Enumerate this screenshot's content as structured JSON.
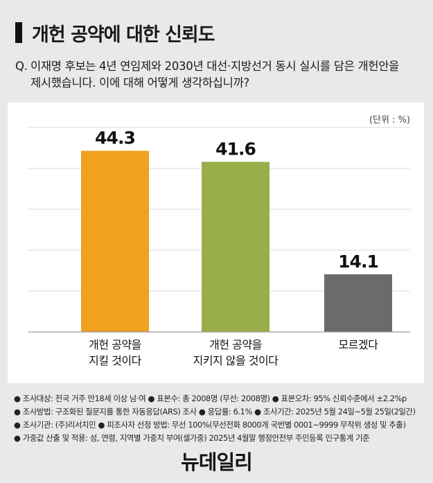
{
  "header": {
    "title": "개헌 공약에 대한 신뢰도",
    "question_prefix": "Q.",
    "question_line1": "이재명 후보는 4년 연임제와 2030년 대선·지방선거 동시 실시를 담은 개헌안을",
    "question_line2": "제시했습니다. 이에 대해 어떻게 생각하십니까?"
  },
  "unit_label": "(단위 : %)",
  "chart_data": {
    "type": "bar",
    "categories": [
      [
        "개헌 공약을",
        "지킬 것이다"
      ],
      [
        "개헌 공약을",
        "지키지 않을 것이다"
      ],
      [
        "모르겠다"
      ]
    ],
    "values": [
      44.3,
      41.6,
      14.1
    ],
    "value_labels": [
      "44.3",
      "41.6",
      "14.1"
    ],
    "colors": [
      "#f0a11e",
      "#99ad4a",
      "#6b6b6b"
    ],
    "ylim": [
      0,
      50
    ],
    "grid": true,
    "title": "",
    "xlabel": "",
    "ylabel": ""
  },
  "footer": {
    "notes": [
      "● 조사대상: 전국 거주 만18세 이상 남·여  ● 표본수: 총 2008명 (무선: 2008명)  ● 표본오차: 95% 신뢰수준에서 ±2.2%p",
      "● 조사방법: 구조화된 질문지를 통한 자동응답(ARS) 조사  ● 응답률: 6.1%  ● 조사기간: 2025년 5월 24일~5월 25일(2일간)",
      "● 조사기관: (주)리서치민  ● 피조사자 선정 방법: 무선 100%(무선전화 8000개 국번별 0001~9999 무작위 생성 및 추출)",
      "● 가중값 산출 및 적용: 성, 연령, 지역별 가중치 부여(셀가중) 2025년 4월말 행정안전부 주민등록 인구통계 기준"
    ]
  },
  "logo_text": "뉴데일리"
}
